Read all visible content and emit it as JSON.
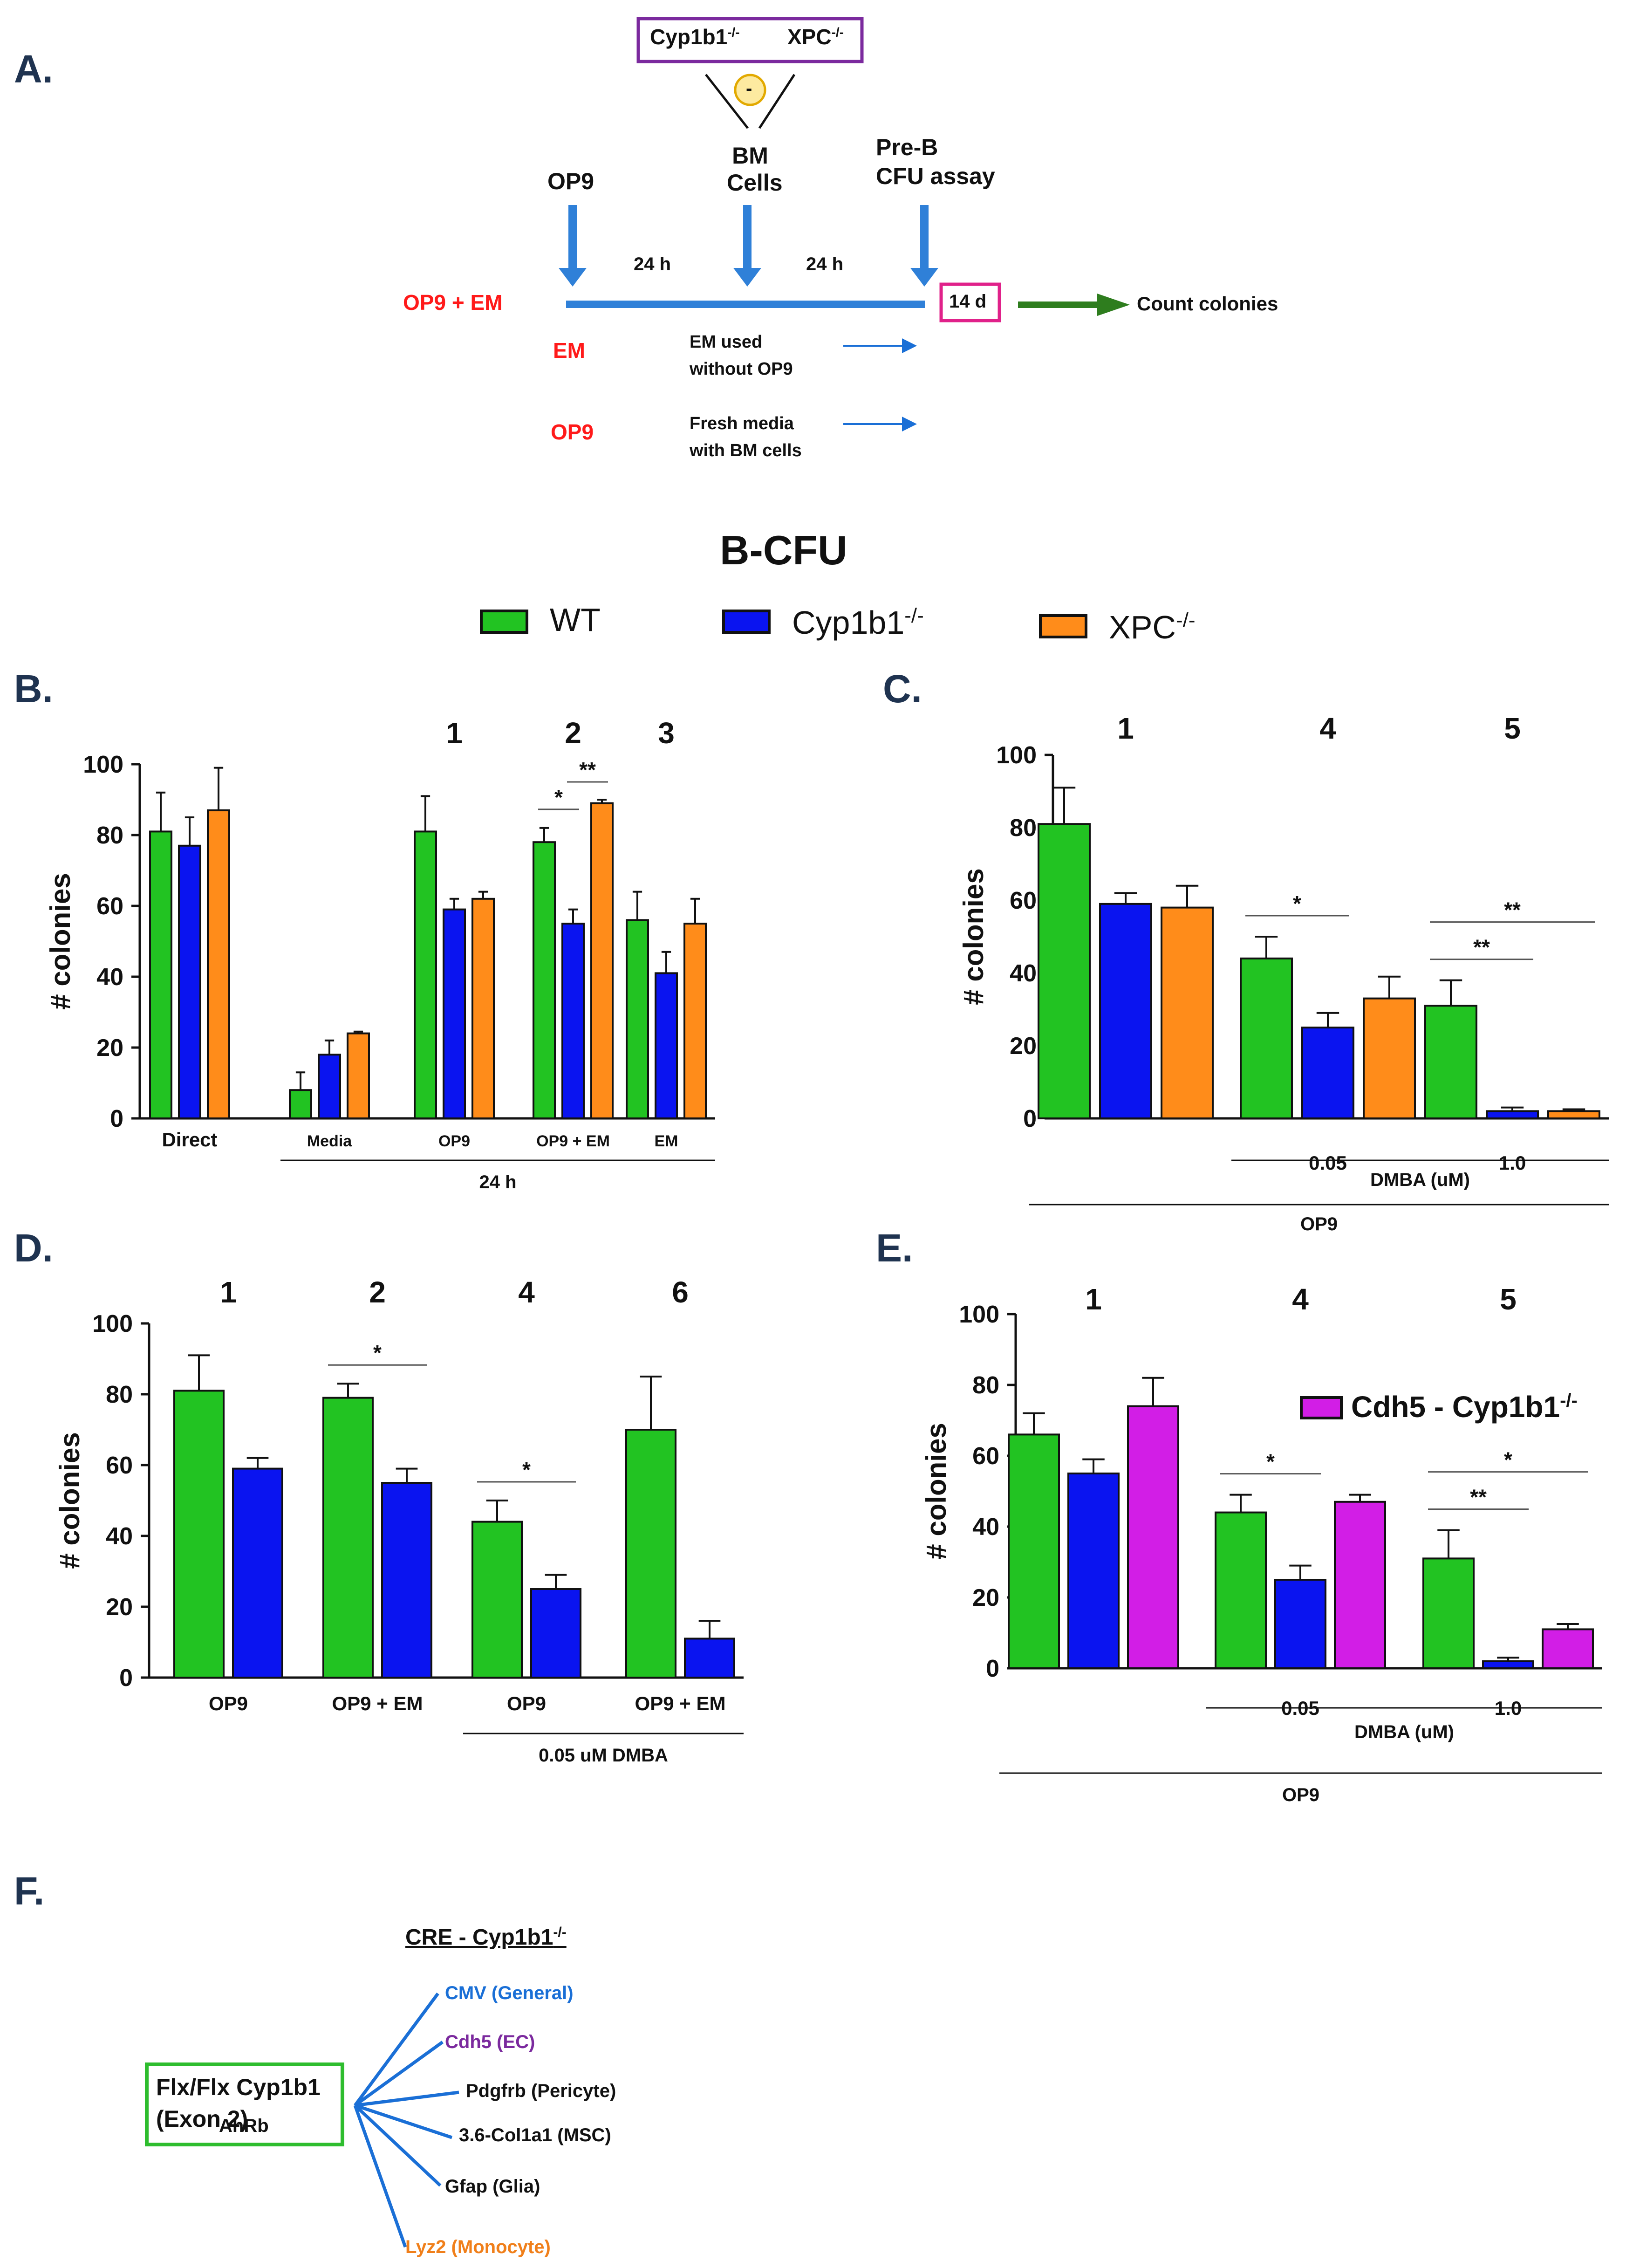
{
  "panels": {
    "a": "A.",
    "b": "B.",
    "c": "C.",
    "d": "D.",
    "e": "E.",
    "f": "F."
  },
  "schematic": {
    "box_left": "Cyp1b1",
    "box_left_sup": "-/-",
    "box_right": "XPC",
    "box_right_sup": "-/-",
    "minus": "-",
    "op9": "OP9",
    "bm_line1": "BM",
    "bm_line2": "Cells",
    "preb_line1": "Pre-B",
    "preb_line2": "CFU assay",
    "time1": "24 h",
    "time2": "24 h",
    "days": "14 d",
    "count": "Count colonies",
    "cond1": "OP9 + EM",
    "cond2": "EM",
    "cond3": "OP9",
    "em_note1": "EM used",
    "em_note2": "without OP9",
    "fresh_note1": "Fresh media",
    "fresh_note2": "with BM cells",
    "colors": {
      "purple": "#7b2a9e",
      "blue": "#1a6fd6",
      "green": "#2e7d1e",
      "magenta": "#e0218a",
      "red": "#ff1a1a"
    }
  },
  "legend": {
    "title": "B-CFU",
    "items": [
      {
        "name": "WT",
        "sup": "",
        "color": "#22c322"
      },
      {
        "name": "Cyp1b1",
        "sup": "-/-",
        "color": "#0a14f0"
      },
      {
        "name": "XPC",
        "sup": "-/-",
        "color": "#ff8c1a"
      }
    ]
  },
  "chart_data": [
    {
      "id": "B",
      "type": "bar",
      "ylabel": "# colonies",
      "ylim": [
        0,
        100
      ],
      "yticks": [
        0,
        20,
        40,
        60,
        80,
        100
      ],
      "series": [
        "WT",
        "Cyp1b1-/-",
        "XPC-/-"
      ],
      "groups": [
        {
          "label": "Direct",
          "number": "",
          "values": [
            81,
            77,
            87
          ],
          "errors": [
            11,
            8,
            12
          ]
        },
        {
          "label": "Media",
          "number": "",
          "values": [
            8,
            18,
            24
          ],
          "errors": [
            5,
            4,
            0.5
          ]
        },
        {
          "label": "OP9",
          "number": "1",
          "values": [
            81,
            59,
            62
          ],
          "errors": [
            10,
            3,
            2
          ]
        },
        {
          "label": "OP9 + EM",
          "number": "2",
          "values": [
            78,
            55,
            89
          ],
          "errors": [
            4,
            4,
            1
          ]
        },
        {
          "label": "EM",
          "number": "3",
          "values": [
            56,
            41,
            55
          ],
          "errors": [
            8,
            6,
            7
          ]
        }
      ],
      "sig": [
        {
          "group": 3,
          "from": 0,
          "to": 1,
          "label": "*"
        },
        {
          "group": 3,
          "from": 1,
          "to": 2,
          "label": "**"
        }
      ],
      "brackets": [
        {
          "from": 1,
          "to": 4,
          "label": "24 h"
        }
      ]
    },
    {
      "id": "C",
      "type": "bar",
      "ylabel": "# colonies",
      "ylim": [
        0,
        100
      ],
      "yticks": [
        0,
        20,
        40,
        60,
        80,
        100
      ],
      "series": [
        "WT",
        "Cyp1b1-/-",
        "XPC-/-"
      ],
      "groups": [
        {
          "label": "",
          "number": "1",
          "values": [
            81,
            59,
            58
          ],
          "errors": [
            10,
            3,
            6
          ]
        },
        {
          "label": "0.05",
          "number": "4",
          "values": [
            44,
            25,
            33
          ],
          "errors": [
            6,
            4,
            6
          ]
        },
        {
          "label": "1.0",
          "number": "5",
          "values": [
            31,
            2,
            2
          ],
          "errors": [
            7,
            1,
            0.5
          ]
        }
      ],
      "sig": [
        {
          "group": 1,
          "from": 0,
          "to": 1,
          "label": "*"
        },
        {
          "group": 2,
          "from": 0,
          "to": 1,
          "label": "**"
        },
        {
          "group": 2,
          "from": 0,
          "to": 2,
          "label": "**"
        }
      ],
      "brackets": [
        {
          "from": 1,
          "to": 2,
          "label": "DMBA (uM)"
        },
        {
          "from": 0,
          "to": 2,
          "label": "OP9"
        }
      ]
    },
    {
      "id": "D",
      "type": "bar",
      "ylabel": "# colonies",
      "ylim": [
        0,
        100
      ],
      "yticks": [
        0,
        20,
        40,
        60,
        80,
        100
      ],
      "series": [
        "WT",
        "Cyp1b1-/-"
      ],
      "groups": [
        {
          "label": "OP9",
          "number": "1",
          "values": [
            81,
            59
          ],
          "errors": [
            10,
            3
          ]
        },
        {
          "label": "OP9 + EM",
          "number": "2",
          "values": [
            79,
            55
          ],
          "errors": [
            4,
            4
          ]
        },
        {
          "label": "OP9",
          "number": "4",
          "values": [
            44,
            25
          ],
          "errors": [
            6,
            4
          ]
        },
        {
          "label": "OP9 + EM",
          "number": "6",
          "values": [
            70,
            11
          ],
          "errors": [
            15,
            5
          ]
        }
      ],
      "sig": [
        {
          "group": 1,
          "from": 0,
          "to": 1,
          "label": "*"
        },
        {
          "group": 2,
          "from": 0,
          "to": 1,
          "label": "*"
        }
      ],
      "brackets": [
        {
          "from": 2,
          "to": 3,
          "label": "0.05 uM DMBA"
        }
      ]
    },
    {
      "id": "E",
      "type": "bar",
      "ylabel": "# colonies",
      "ylim": [
        0,
        100
      ],
      "yticks": [
        0,
        20,
        40,
        60,
        80,
        100
      ],
      "series": [
        "WT",
        "Cyp1b1-/-",
        "Cdh5 - Cyp1b1-/-"
      ],
      "legend": {
        "name": "Cdh5 - Cyp1b1",
        "sup": "-/-",
        "color": "#d21ee6"
      },
      "groups": [
        {
          "label": "",
          "number": "1",
          "values": [
            66,
            55,
            74
          ],
          "errors": [
            6,
            4,
            8
          ]
        },
        {
          "label": "0.05",
          "number": "4",
          "values": [
            44,
            25,
            47
          ],
          "errors": [
            5,
            4,
            2
          ]
        },
        {
          "label": "1.0",
          "number": "5",
          "values": [
            31,
            2,
            11
          ],
          "errors": [
            8,
            1,
            1.5
          ]
        }
      ],
      "sig": [
        {
          "group": 1,
          "from": 0,
          "to": 1,
          "label": "*"
        },
        {
          "group": 2,
          "from": 0,
          "to": 1,
          "label": "**"
        },
        {
          "group": 2,
          "from": 0,
          "to": 2,
          "label": "*"
        }
      ],
      "brackets": [
        {
          "from": 1,
          "to": 2,
          "label": "DMBA (uM)"
        },
        {
          "from": 0,
          "to": 2,
          "label": "OP9"
        }
      ]
    }
  ],
  "panel_f": {
    "title": "CRE - Cyp1b1",
    "title_sup": "-/-",
    "box_line1": "Flx/Flx Cyp1b1",
    "box_line2": "(Exon 2)",
    "under_box": "AhRb",
    "targets": [
      {
        "label": "CMV (General)",
        "color": "#1a6fd6"
      },
      {
        "label": "Cdh5 (EC)",
        "color": "#7b2a9e"
      },
      {
        "label": "Pdgfrb (Pericyte)",
        "color": "#111111"
      },
      {
        "label": "3.6-Col1a1 (MSC)",
        "color": "#111111"
      },
      {
        "label": "Gfap (Glia)",
        "color": "#111111"
      },
      {
        "label": "Lyz2 (Monocyte)",
        "color": "#f07f1a"
      }
    ]
  }
}
